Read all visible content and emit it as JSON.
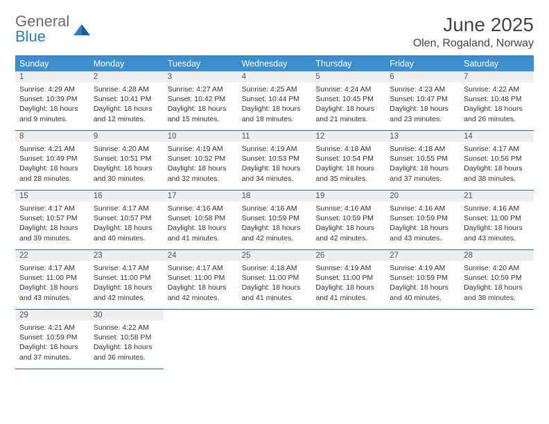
{
  "brand": {
    "word1": "General",
    "word2": "Blue",
    "word1_color": "#6b6b6b",
    "word2_color": "#2f7bbf"
  },
  "header": {
    "title": "June 2025",
    "location": "Olen, Rogaland, Norway"
  },
  "colors": {
    "dow_bg": "#3d8ecf",
    "dow_fg": "#ffffff",
    "rule": "#2f6aa0",
    "daynum_bg": "#eceeef",
    "text": "#333333"
  },
  "calendar": {
    "day_names": [
      "Sunday",
      "Monday",
      "Tuesday",
      "Wednesday",
      "Thursday",
      "Friday",
      "Saturday"
    ],
    "weeks": [
      [
        {
          "n": "1",
          "sunrise": "4:29 AM",
          "sunset": "10:39 PM",
          "daylight": "18 hours and 9 minutes."
        },
        {
          "n": "2",
          "sunrise": "4:28 AM",
          "sunset": "10:41 PM",
          "daylight": "18 hours and 12 minutes."
        },
        {
          "n": "3",
          "sunrise": "4:27 AM",
          "sunset": "10:42 PM",
          "daylight": "18 hours and 15 minutes."
        },
        {
          "n": "4",
          "sunrise": "4:25 AM",
          "sunset": "10:44 PM",
          "daylight": "18 hours and 18 minutes."
        },
        {
          "n": "5",
          "sunrise": "4:24 AM",
          "sunset": "10:45 PM",
          "daylight": "18 hours and 21 minutes."
        },
        {
          "n": "6",
          "sunrise": "4:23 AM",
          "sunset": "10:47 PM",
          "daylight": "18 hours and 23 minutes."
        },
        {
          "n": "7",
          "sunrise": "4:22 AM",
          "sunset": "10:48 PM",
          "daylight": "18 hours and 26 minutes."
        }
      ],
      [
        {
          "n": "8",
          "sunrise": "4:21 AM",
          "sunset": "10:49 PM",
          "daylight": "18 hours and 28 minutes."
        },
        {
          "n": "9",
          "sunrise": "4:20 AM",
          "sunset": "10:51 PM",
          "daylight": "18 hours and 30 minutes."
        },
        {
          "n": "10",
          "sunrise": "4:19 AM",
          "sunset": "10:52 PM",
          "daylight": "18 hours and 32 minutes."
        },
        {
          "n": "11",
          "sunrise": "4:19 AM",
          "sunset": "10:53 PM",
          "daylight": "18 hours and 34 minutes."
        },
        {
          "n": "12",
          "sunrise": "4:18 AM",
          "sunset": "10:54 PM",
          "daylight": "18 hours and 35 minutes."
        },
        {
          "n": "13",
          "sunrise": "4:18 AM",
          "sunset": "10:55 PM",
          "daylight": "18 hours and 37 minutes."
        },
        {
          "n": "14",
          "sunrise": "4:17 AM",
          "sunset": "10:56 PM",
          "daylight": "18 hours and 38 minutes."
        }
      ],
      [
        {
          "n": "15",
          "sunrise": "4:17 AM",
          "sunset": "10:57 PM",
          "daylight": "18 hours and 39 minutes."
        },
        {
          "n": "16",
          "sunrise": "4:17 AM",
          "sunset": "10:57 PM",
          "daylight": "18 hours and 40 minutes."
        },
        {
          "n": "17",
          "sunrise": "4:16 AM",
          "sunset": "10:58 PM",
          "daylight": "18 hours and 41 minutes."
        },
        {
          "n": "18",
          "sunrise": "4:16 AM",
          "sunset": "10:59 PM",
          "daylight": "18 hours and 42 minutes."
        },
        {
          "n": "19",
          "sunrise": "4:16 AM",
          "sunset": "10:59 PM",
          "daylight": "18 hours and 42 minutes."
        },
        {
          "n": "20",
          "sunrise": "4:16 AM",
          "sunset": "10:59 PM",
          "daylight": "18 hours and 43 minutes."
        },
        {
          "n": "21",
          "sunrise": "4:16 AM",
          "sunset": "11:00 PM",
          "daylight": "18 hours and 43 minutes."
        }
      ],
      [
        {
          "n": "22",
          "sunrise": "4:17 AM",
          "sunset": "11:00 PM",
          "daylight": "18 hours and 43 minutes."
        },
        {
          "n": "23",
          "sunrise": "4:17 AM",
          "sunset": "11:00 PM",
          "daylight": "18 hours and 42 minutes."
        },
        {
          "n": "24",
          "sunrise": "4:17 AM",
          "sunset": "11:00 PM",
          "daylight": "18 hours and 42 minutes."
        },
        {
          "n": "25",
          "sunrise": "4:18 AM",
          "sunset": "11:00 PM",
          "daylight": "18 hours and 41 minutes."
        },
        {
          "n": "26",
          "sunrise": "4:19 AM",
          "sunset": "11:00 PM",
          "daylight": "18 hours and 41 minutes."
        },
        {
          "n": "27",
          "sunrise": "4:19 AM",
          "sunset": "10:59 PM",
          "daylight": "18 hours and 40 minutes."
        },
        {
          "n": "28",
          "sunrise": "4:20 AM",
          "sunset": "10:59 PM",
          "daylight": "18 hours and 38 minutes."
        }
      ],
      [
        {
          "n": "29",
          "sunrise": "4:21 AM",
          "sunset": "10:59 PM",
          "daylight": "18 hours and 37 minutes."
        },
        {
          "n": "30",
          "sunrise": "4:22 AM",
          "sunset": "10:58 PM",
          "daylight": "18 hours and 36 minutes."
        },
        null,
        null,
        null,
        null,
        null
      ]
    ],
    "labels": {
      "sunrise": "Sunrise:",
      "sunset": "Sunset:",
      "daylight": "Daylight:"
    }
  }
}
